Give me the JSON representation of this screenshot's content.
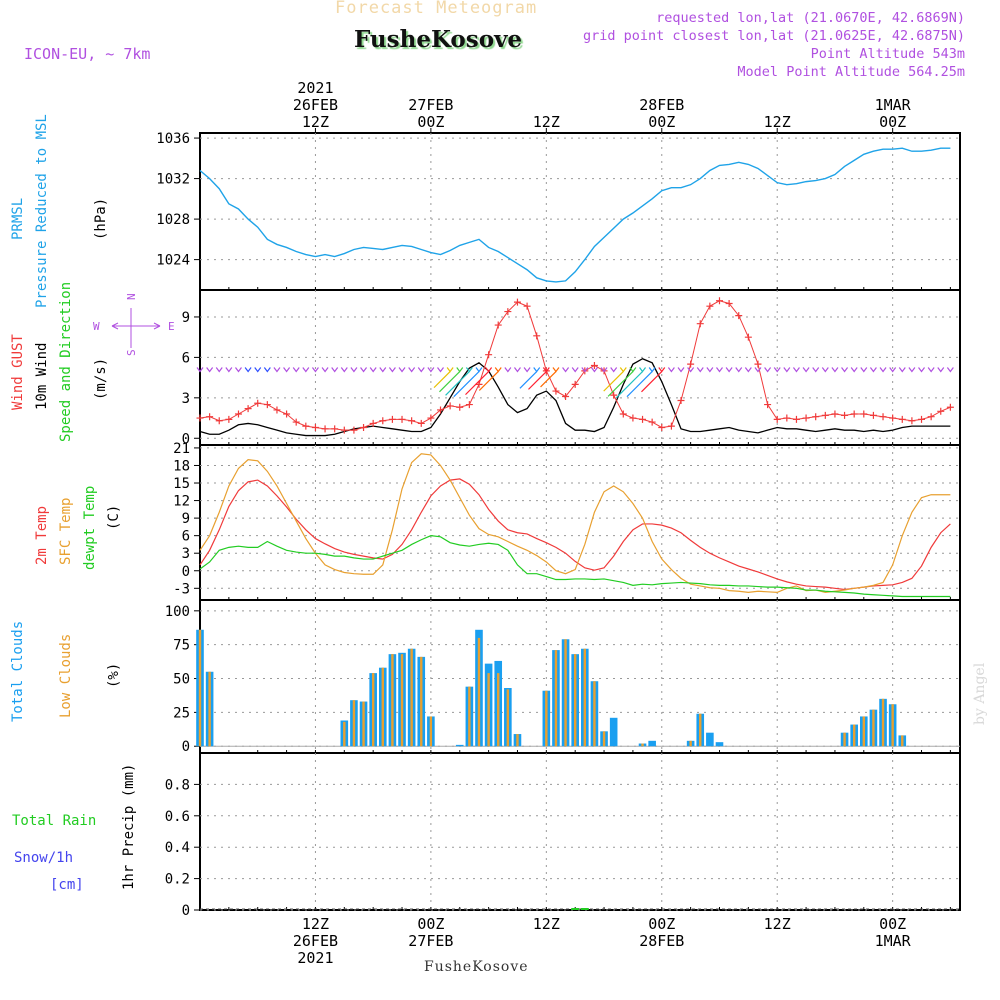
{
  "header": {
    "title": "Forecast Meteogram",
    "location": "FusheKosove",
    "model": "ICON-EU, ~ 7km",
    "requested": "requested lon,lat (21.0670E, 42.6869N)",
    "closest": "grid point closest lon,lat (21.0625E, 42.6875N)",
    "point_alt": "Point Altitude 543m",
    "model_alt": "Model Point Altitude 564.25m",
    "footer": "FusheKosove",
    "watermark": "by Angel"
  },
  "colors": {
    "pressure": "#1fa3e8",
    "gust": "#f03a3a",
    "wind": "#000000",
    "temp2m": "#f03a3a",
    "sfc": "#e8a030",
    "dewpt": "#22cc22",
    "total_clouds": "#1a9ff0",
    "low_clouds": "#e8a030",
    "purple": "#b050e0",
    "rain": "#22cc22",
    "snow": "#4444ee"
  },
  "time_axis": {
    "top_labels": [
      {
        "t": 12,
        "lines": [
          "2021",
          "26FEB",
          "12Z"
        ]
      },
      {
        "t": 24,
        "lines": [
          "27FEB",
          "00Z"
        ]
      },
      {
        "t": 36,
        "lines": [
          "12Z"
        ]
      },
      {
        "t": 48,
        "lines": [
          "28FEB",
          "00Z"
        ]
      },
      {
        "t": 60,
        "lines": [
          "12Z"
        ]
      },
      {
        "t": 72,
        "lines": [
          "1MAR",
          "00Z"
        ]
      }
    ],
    "bottom_labels": [
      {
        "t": 12,
        "lines": [
          "12Z",
          "26FEB",
          "2021"
        ]
      },
      {
        "t": 24,
        "lines": [
          "00Z",
          "27FEB"
        ]
      },
      {
        "t": 36,
        "lines": [
          "12Z"
        ]
      },
      {
        "t": 48,
        "lines": [
          "00Z",
          "28FEB"
        ]
      },
      {
        "t": 60,
        "lines": [
          "12Z"
        ]
      },
      {
        "t": 72,
        "lines": [
          "00Z",
          "1MAR"
        ]
      }
    ]
  },
  "panel_labels": {
    "pressure": [
      "PRMSL",
      "Pressure Reduced to MSL",
      "(hPa)"
    ],
    "wind": [
      "Wind GUST",
      "10m Wind",
      "Speed and Direction",
      "(m/s)"
    ],
    "compass": {
      "n": "N",
      "s": "S",
      "w": "W",
      "e": "E"
    },
    "temp": [
      "2m Temp",
      "SFC Temp",
      "dewpt Temp",
      "(C)"
    ],
    "clouds": [
      "Total Clouds",
      "Low Clouds",
      "(%)"
    ],
    "precip": [
      "Total  Rain",
      "Snow/1h",
      "[cm]",
      "1hr Precip (mm)"
    ]
  },
  "chart_data": [
    {
      "type": "line",
      "name": "pressure",
      "title": "PRMSL Pressure Reduced to MSL",
      "ylabel": "(hPa)",
      "ylim": [
        1021,
        1036.5
      ],
      "yticks": [
        "1024",
        "1028",
        "1032",
        "1036"
      ],
      "x_hours": [
        0,
        1,
        2,
        3,
        4,
        5,
        6,
        7,
        8,
        9,
        10,
        11,
        12,
        13,
        14,
        15,
        16,
        17,
        18,
        19,
        20,
        21,
        22,
        23,
        24,
        25,
        26,
        27,
        28,
        29,
        30,
        31,
        32,
        33,
        34,
        35,
        36,
        37,
        38,
        39,
        40,
        41,
        42,
        43,
        44,
        45,
        46,
        47,
        48,
        49,
        50,
        51,
        52,
        53,
        54,
        55,
        56,
        57,
        58,
        59,
        60,
        61,
        62,
        63,
        64,
        65,
        66,
        67,
        68,
        69,
        70,
        71,
        72,
        73,
        74,
        75,
        76,
        77,
        78
      ],
      "series": [
        {
          "values": [
            1032.8,
            1032.0,
            1031.0,
            1029.5,
            1029.0,
            1028.0,
            1027.2,
            1026.0,
            1025.5,
            1025.2,
            1024.8,
            1024.5,
            1024.3,
            1024.5,
            1024.3,
            1024.6,
            1025.0,
            1025.2,
            1025.1,
            1025.0,
            1025.2,
            1025.4,
            1025.3,
            1025.0,
            1024.7,
            1024.5,
            1024.9,
            1025.4,
            1025.7,
            1026.0,
            1025.2,
            1024.8,
            1024.2,
            1023.6,
            1023.0,
            1022.2,
            1021.9,
            1021.8,
            1021.9,
            1022.8,
            1024.0,
            1025.3,
            1026.2,
            1027.1,
            1028.0,
            1028.6,
            1029.3,
            1030.0,
            1030.8,
            1031.1,
            1031.1,
            1031.4,
            1032.0,
            1032.8,
            1033.3,
            1033.4,
            1033.6,
            1033.4,
            1033.0,
            1032.3,
            1031.6,
            1031.4,
            1031.5,
            1031.7,
            1031.8,
            1032.0,
            1032.4,
            1033.2,
            1033.8,
            1034.4,
            1034.7,
            1034.9,
            1034.9,
            1035.0,
            1034.7,
            1034.7,
            1034.8,
            1035.0,
            1035.0
          ]
        }
      ]
    },
    {
      "type": "line",
      "name": "wind",
      "title": "Wind GUST / 10m Wind Speed and Direction",
      "ylabel": "(m/s)",
      "ylim": [
        -0.5,
        11
      ],
      "yticks": [
        "0",
        "3",
        "6",
        "9"
      ],
      "x_hours": [
        0,
        1,
        2,
        3,
        4,
        5,
        6,
        7,
        8,
        9,
        10,
        11,
        12,
        13,
        14,
        15,
        16,
        17,
        18,
        19,
        20,
        21,
        22,
        23,
        24,
        25,
        26,
        27,
        28,
        29,
        30,
        31,
        32,
        33,
        34,
        35,
        36,
        37,
        38,
        39,
        40,
        41,
        42,
        43,
        44,
        45,
        46,
        47,
        48,
        49,
        50,
        51,
        52,
        53,
        54,
        55,
        56,
        57,
        58,
        59,
        60,
        61,
        62,
        63,
        64,
        65,
        66,
        67,
        68,
        69,
        70,
        71,
        72,
        73,
        74,
        75,
        76,
        77,
        78
      ],
      "series": [
        {
          "name": "Wind GUST",
          "values": [
            1.5,
            1.6,
            1.3,
            1.4,
            1.8,
            2.2,
            2.6,
            2.5,
            2.1,
            1.8,
            1.2,
            0.9,
            0.8,
            0.7,
            0.7,
            0.6,
            0.6,
            0.8,
            1.1,
            1.3,
            1.4,
            1.4,
            1.3,
            1.1,
            1.5,
            2.1,
            2.4,
            2.3,
            2.5,
            4.0,
            6.2,
            8.4,
            9.4,
            10.1,
            9.8,
            7.6,
            5.0,
            3.5,
            3.1,
            4.0,
            5.0,
            5.4,
            5.0,
            3.2,
            1.8,
            1.5,
            1.4,
            1.2,
            0.8,
            0.9,
            2.8,
            5.5,
            8.5,
            9.8,
            10.2,
            10.0,
            9.1,
            7.5,
            5.5,
            2.5,
            1.4,
            1.5,
            1.4,
            1.5,
            1.6,
            1.7,
            1.8,
            1.7,
            1.8,
            1.8,
            1.7,
            1.6,
            1.5,
            1.4,
            1.3,
            1.4,
            1.6,
            2.0,
            2.3
          ]
        },
        {
          "name": "10m Wind",
          "values": [
            0.5,
            0.3,
            0.3,
            0.6,
            1.0,
            1.1,
            1.0,
            0.8,
            0.6,
            0.4,
            0.3,
            0.2,
            0.2,
            0.2,
            0.3,
            0.5,
            0.7,
            0.8,
            0.9,
            0.8,
            0.7,
            0.6,
            0.5,
            0.5,
            0.8,
            1.8,
            3.0,
            4.2,
            5.2,
            5.6,
            5.0,
            3.8,
            2.5,
            1.9,
            2.2,
            3.2,
            3.5,
            2.8,
            1.1,
            0.6,
            0.6,
            0.5,
            0.8,
            2.3,
            4.0,
            5.5,
            5.9,
            5.6,
            4.2,
            2.5,
            0.7,
            0.5,
            0.5,
            0.6,
            0.7,
            0.8,
            0.6,
            0.5,
            0.4,
            0.6,
            0.8,
            0.7,
            0.7,
            0.6,
            0.5,
            0.6,
            0.7,
            0.6,
            0.6,
            0.5,
            0.6,
            0.5,
            0.6,
            0.8,
            0.9,
            0.9,
            0.9,
            0.9,
            0.9
          ]
        }
      ]
    },
    {
      "type": "line",
      "name": "temperature",
      "title": "2m Temp / SFC Temp / dewpt Temp",
      "ylabel": "(C)",
      "ylim": [
        -5,
        21.5
      ],
      "yticks": [
        "-3",
        "0",
        "3",
        "6",
        "9",
        "12",
        "15",
        "18",
        "21"
      ],
      "x_hours": [
        0,
        1,
        2,
        3,
        4,
        5,
        6,
        7,
        8,
        9,
        10,
        11,
        12,
        13,
        14,
        15,
        16,
        17,
        18,
        19,
        20,
        21,
        22,
        23,
        24,
        25,
        26,
        27,
        28,
        29,
        30,
        31,
        32,
        33,
        34,
        35,
        36,
        37,
        38,
        39,
        40,
        41,
        42,
        43,
        44,
        45,
        46,
        47,
        48,
        49,
        50,
        51,
        52,
        53,
        54,
        55,
        56,
        57,
        58,
        59,
        60,
        61,
        62,
        63,
        64,
        65,
        66,
        67,
        68,
        69,
        70,
        71,
        72,
        73,
        74,
        75,
        76,
        77,
        78
      ],
      "series": [
        {
          "name": "2m Temp",
          "values": [
            1.0,
            3.5,
            7.0,
            11.0,
            13.7,
            15.2,
            15.5,
            14.5,
            12.8,
            10.9,
            8.8,
            7.0,
            5.5,
            4.6,
            3.8,
            3.2,
            2.8,
            2.5,
            2.2,
            2.0,
            2.8,
            4.5,
            7.0,
            10.0,
            12.8,
            14.5,
            15.5,
            15.7,
            14.8,
            13.0,
            10.5,
            8.5,
            7.0,
            6.5,
            6.3,
            5.5,
            4.8,
            4.0,
            3.0,
            1.6,
            0.5,
            0.1,
            0.5,
            2.5,
            5.0,
            7.0,
            8.0,
            8.0,
            7.8,
            7.3,
            6.5,
            5.2,
            4.0,
            3.0,
            2.2,
            1.5,
            0.8,
            0.3,
            -0.2,
            -0.8,
            -1.4,
            -1.9,
            -2.3,
            -2.6,
            -2.7,
            -2.8,
            -3.0,
            -3.2,
            -3.0,
            -2.8,
            -2.6,
            -2.5,
            -2.4,
            -2.0,
            -1.3,
            0.8,
            4.0,
            6.5,
            8.0
          ]
        },
        {
          "name": "SFC Temp",
          "values": [
            3.5,
            6.0,
            10.0,
            14.5,
            17.5,
            19.0,
            18.8,
            17.0,
            14.5,
            11.5,
            8.5,
            5.5,
            3.0,
            1.0,
            0.2,
            -0.3,
            -0.5,
            -0.6,
            -0.6,
            1.0,
            7.0,
            14.0,
            18.5,
            20.0,
            19.8,
            18.0,
            15.5,
            12.5,
            9.5,
            7.2,
            6.2,
            5.8,
            5.0,
            4.2,
            3.5,
            2.6,
            1.5,
            0.0,
            -0.5,
            0.2,
            4.5,
            10.0,
            13.5,
            14.5,
            13.5,
            11.5,
            9.0,
            5.0,
            2.0,
            0.2,
            -1.3,
            -2.3,
            -2.6,
            -2.9,
            -3.0,
            -3.4,
            -3.5,
            -3.7,
            -3.5,
            -3.6,
            -3.7,
            -3.0,
            -2.6,
            -3.4,
            -3.3,
            -3.7,
            -3.5,
            -3.3,
            -3.0,
            -2.8,
            -2.5,
            -2.0,
            1.0,
            6.0,
            10.0,
            12.5,
            13.0,
            13.0,
            13.0
          ]
        },
        {
          "name": "dewpt Temp",
          "values": [
            0.3,
            1.5,
            3.5,
            4.0,
            4.2,
            4.0,
            4.0,
            5.0,
            4.2,
            3.5,
            3.2,
            3.0,
            3.0,
            2.8,
            2.5,
            2.5,
            2.2,
            2.0,
            2.0,
            2.5,
            3.0,
            3.5,
            4.5,
            5.3,
            6.0,
            5.8,
            4.8,
            4.4,
            4.2,
            4.5,
            4.7,
            4.5,
            3.5,
            1.0,
            -0.5,
            -0.5,
            -1.0,
            -1.5,
            -1.5,
            -1.4,
            -1.4,
            -1.5,
            -1.4,
            -1.7,
            -2.0,
            -2.5,
            -2.3,
            -2.4,
            -2.2,
            -2.1,
            -2.0,
            -2.1,
            -2.2,
            -2.4,
            -2.5,
            -2.5,
            -2.6,
            -2.6,
            -2.7,
            -2.8,
            -2.8,
            -2.9,
            -3.0,
            -3.3,
            -3.3,
            -3.5,
            -3.6,
            -3.7,
            -3.8,
            -4.0,
            -4.1,
            -4.2,
            -4.3,
            -4.4,
            -4.4,
            -4.4,
            -4.4,
            -4.4,
            -4.4
          ]
        }
      ]
    },
    {
      "type": "bar",
      "name": "clouds",
      "title": "Total Clouds / Low Clouds",
      "ylabel": "(%)",
      "ylim": [
        -5,
        108
      ],
      "yticks": [
        "0",
        "25",
        "50",
        "75",
        "100"
      ],
      "x_hours": [
        0,
        1,
        2,
        3,
        4,
        5,
        6,
        7,
        8,
        9,
        10,
        11,
        12,
        13,
        14,
        15,
        16,
        17,
        18,
        19,
        20,
        21,
        22,
        23,
        24,
        25,
        26,
        27,
        28,
        29,
        30,
        31,
        32,
        33,
        34,
        35,
        36,
        37,
        38,
        39,
        40,
        41,
        42,
        43,
        44,
        45,
        46,
        47,
        48,
        49,
        50,
        51,
        52,
        53,
        54,
        55,
        56,
        57,
        58,
        59,
        60,
        61,
        62,
        63,
        64,
        65,
        66,
        67,
        68,
        69,
        70,
        71,
        72,
        73,
        74,
        75,
        76,
        77,
        78
      ],
      "series": [
        {
          "name": "Total Clouds",
          "values": [
            86,
            55,
            0,
            0,
            0,
            0,
            0,
            0,
            0,
            0,
            0,
            0,
            0,
            0,
            0,
            19,
            34,
            33,
            54,
            58,
            68,
            69,
            72,
            66,
            22,
            0,
            0,
            1,
            44,
            86,
            61,
            63,
            43,
            9,
            0,
            0,
            41,
            71,
            79,
            68,
            72,
            48,
            11,
            21,
            0,
            0,
            2,
            4,
            0,
            0,
            0,
            4,
            24,
            10,
            3,
            0,
            0,
            0,
            0,
            0,
            0,
            0,
            0,
            0,
            0,
            0,
            0,
            10,
            16,
            22,
            27,
            35,
            31,
            8,
            0,
            0,
            0,
            0,
            0
          ]
        },
        {
          "name": "Low Clouds",
          "values": [
            86,
            55,
            0,
            0,
            0,
            0,
            0,
            0,
            0,
            0,
            0,
            0,
            0,
            0,
            0,
            18,
            34,
            33,
            54,
            58,
            68,
            68,
            72,
            66,
            22,
            0,
            0,
            0,
            44,
            80,
            54,
            54,
            42,
            9,
            0,
            0,
            41,
            71,
            79,
            68,
            72,
            48,
            11,
            0,
            0,
            0,
            2,
            0,
            0,
            0,
            0,
            4,
            24,
            0,
            0,
            0,
            0,
            0,
            0,
            0,
            0,
            0,
            0,
            0,
            0,
            0,
            0,
            10,
            16,
            22,
            27,
            35,
            31,
            8,
            0,
            0,
            0,
            0,
            0
          ]
        }
      ]
    },
    {
      "type": "bar",
      "name": "precipitation",
      "title": "Total Rain / Snow/1h [cm]",
      "ylabel": "1hr Precip (mm)",
      "ylim": [
        0,
        1.0
      ],
      "yticks": [
        "0",
        "0.2",
        "0.4",
        "0.6",
        "0.8"
      ],
      "x_hours": [
        39,
        40
      ],
      "series": [
        {
          "name": "Total Rain",
          "values": [
            0.01,
            0.01
          ]
        },
        {
          "name": "Snow/1h",
          "values": [
            0,
            0
          ]
        }
      ]
    }
  ]
}
